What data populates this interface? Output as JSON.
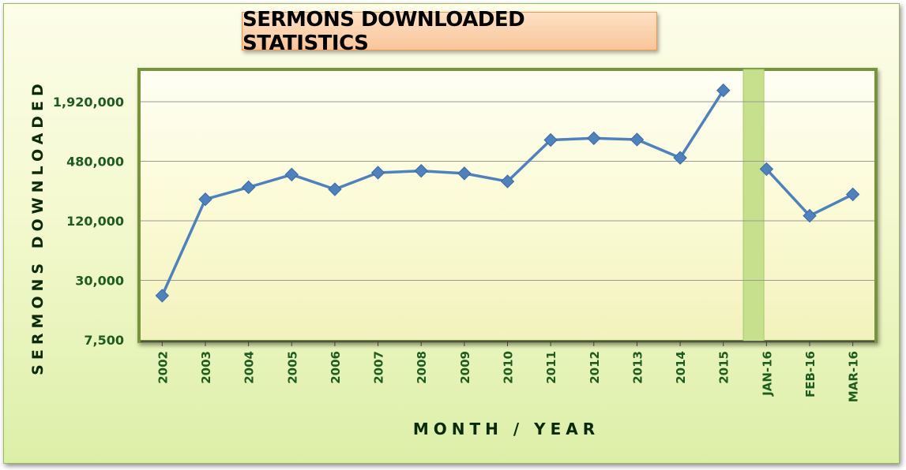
{
  "chart_data": {
    "type": "line",
    "title": "SERMONS DOWNLOADED STATISTICS",
    "xlabel": "MONTH  /  YEAR",
    "ylabel": "SERMONS DOWNLOADED",
    "y_scale": "log",
    "ylim": [
      7500,
      3500000
    ],
    "y_ticks": [
      7500,
      30000,
      120000,
      480000,
      1920000
    ],
    "y_tick_labels": [
      "7,500",
      "30,000",
      "120,000",
      "480,000",
      "1,920,000"
    ],
    "grid": true,
    "legend": "none",
    "categories": [
      "2002",
      "2003",
      "2004",
      "2005",
      "2006",
      "2007",
      "2008",
      "2009",
      "2010",
      "2011",
      "2012",
      "2013",
      "2014",
      "2015",
      "JAN-16",
      "FEB-16",
      "MAR-16"
    ],
    "series": [
      {
        "name": "",
        "values": [
          21000,
          198000,
          262000,
          352000,
          250000,
          368000,
          384000,
          362000,
          300000,
          788000,
          820000,
          796000,
          520000,
          2500000,
          400000,
          135000,
          222000
        ]
      }
    ],
    "gap_after_category": "2015",
    "colors": {
      "line": "#4f81bd",
      "marker": "#4f81bd",
      "gridline": "#9a9a90",
      "frame": "#77933c",
      "title_bg": "#fbd5b5",
      "title_border": "#f79646",
      "tick_text": "#1e5b1e"
    }
  }
}
